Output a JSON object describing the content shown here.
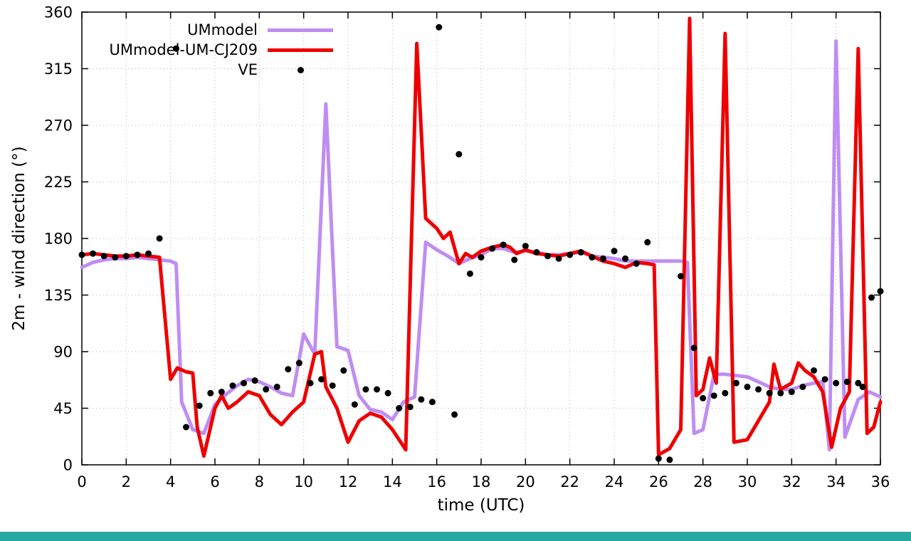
{
  "window": {
    "background": "#ffffff",
    "bottom_bar_color": "#2aa8a3"
  },
  "chart_data": {
    "type": "line",
    "title": "",
    "xlabel": "time (UTC)",
    "ylabel": "2m - wind direction (°)",
    "xlim": [
      0,
      36
    ],
    "ylim": [
      0,
      360
    ],
    "xticks": [
      0,
      2,
      4,
      6,
      8,
      10,
      12,
      14,
      16,
      18,
      20,
      22,
      24,
      26,
      28,
      30,
      32,
      34,
      36
    ],
    "yticks": [
      0,
      45,
      90,
      135,
      180,
      225,
      270,
      315,
      360
    ],
    "grid": true,
    "grid_style": "dotted",
    "legend_position": "top-left-inside",
    "series": [
      {
        "name": "UMmodel",
        "type": "line",
        "color": "#bf8df2",
        "width": 5,
        "points": [
          [
            0,
            157
          ],
          [
            0.5,
            161
          ],
          [
            1,
            163
          ],
          [
            1.5,
            164
          ],
          [
            2,
            164
          ],
          [
            2.5,
            165
          ],
          [
            3,
            164
          ],
          [
            3.5,
            163
          ],
          [
            4,
            162
          ],
          [
            4.25,
            160
          ],
          [
            4.5,
            50
          ],
          [
            5,
            28
          ],
          [
            5.5,
            25
          ],
          [
            6,
            48
          ],
          [
            6.5,
            56
          ],
          [
            7,
            63
          ],
          [
            7.5,
            68
          ],
          [
            8,
            66
          ],
          [
            8.5,
            62
          ],
          [
            9,
            57
          ],
          [
            9.5,
            55
          ],
          [
            10,
            104
          ],
          [
            10.5,
            88
          ],
          [
            11,
            287
          ],
          [
            11.5,
            94
          ],
          [
            12,
            91
          ],
          [
            12.5,
            55
          ],
          [
            13,
            44
          ],
          [
            13.5,
            42
          ],
          [
            14,
            36
          ],
          [
            14.5,
            50
          ],
          [
            15,
            54
          ],
          [
            15.5,
            177
          ],
          [
            16,
            171
          ],
          [
            16.5,
            166
          ],
          [
            17,
            160
          ],
          [
            17.5,
            164
          ],
          [
            18,
            167
          ],
          [
            18.5,
            172
          ],
          [
            19,
            172
          ],
          [
            19.5,
            169
          ],
          [
            20,
            170
          ],
          [
            20.5,
            169
          ],
          [
            21,
            167
          ],
          [
            21.5,
            167
          ],
          [
            22,
            168
          ],
          [
            22.5,
            169
          ],
          [
            23,
            166
          ],
          [
            23.5,
            165
          ],
          [
            24,
            164
          ],
          [
            24.5,
            162
          ],
          [
            25,
            162
          ],
          [
            25.5,
            162
          ],
          [
            26,
            162
          ],
          [
            26.5,
            162
          ],
          [
            27,
            162
          ],
          [
            27.3,
            161
          ],
          [
            27.6,
            25
          ],
          [
            28,
            28
          ],
          [
            28.5,
            72
          ],
          [
            29,
            72
          ],
          [
            29.5,
            71
          ],
          [
            30,
            70
          ],
          [
            30.5,
            66
          ],
          [
            31,
            62
          ],
          [
            31.5,
            60
          ],
          [
            32,
            60
          ],
          [
            32.5,
            63
          ],
          [
            33,
            65
          ],
          [
            33.4,
            66
          ],
          [
            33.7,
            12
          ],
          [
            34,
            337
          ],
          [
            34.4,
            22
          ],
          [
            35,
            52
          ],
          [
            35.5,
            58
          ],
          [
            36,
            54
          ]
        ]
      },
      {
        "name": "UMmodel-UM-CJ209",
        "type": "line",
        "color": "#ee0000",
        "width": 5,
        "points": [
          [
            0,
            167
          ],
          [
            0.5,
            168
          ],
          [
            1,
            167
          ],
          [
            1.5,
            166
          ],
          [
            2,
            166
          ],
          [
            2.5,
            167
          ],
          [
            3,
            166
          ],
          [
            3.5,
            165
          ],
          [
            4,
            68
          ],
          [
            4.3,
            77
          ],
          [
            4.7,
            74
          ],
          [
            5,
            73
          ],
          [
            5.2,
            30
          ],
          [
            5.5,
            7
          ],
          [
            6,
            45
          ],
          [
            6.3,
            55
          ],
          [
            6.6,
            45
          ],
          [
            7,
            50
          ],
          [
            7.5,
            58
          ],
          [
            8,
            55
          ],
          [
            8.5,
            40
          ],
          [
            9,
            32
          ],
          [
            9.5,
            42
          ],
          [
            10,
            50
          ],
          [
            10.5,
            88
          ],
          [
            10.8,
            90
          ],
          [
            11,
            62
          ],
          [
            11.5,
            45
          ],
          [
            12,
            18
          ],
          [
            12.5,
            35
          ],
          [
            13,
            41
          ],
          [
            13.5,
            38
          ],
          [
            14,
            28
          ],
          [
            14.6,
            12
          ],
          [
            15.1,
            335
          ],
          [
            15.5,
            196
          ],
          [
            16,
            188
          ],
          [
            16.3,
            180
          ],
          [
            16.6,
            185
          ],
          [
            17,
            160
          ],
          [
            17.3,
            168
          ],
          [
            17.6,
            165
          ],
          [
            18,
            170
          ],
          [
            18.5,
            173
          ],
          [
            19,
            175
          ],
          [
            19.3,
            173
          ],
          [
            19.6,
            168
          ],
          [
            20,
            171
          ],
          [
            20.5,
            168
          ],
          [
            21,
            167
          ],
          [
            21.5,
            166
          ],
          [
            22,
            168
          ],
          [
            22.5,
            170
          ],
          [
            23,
            166
          ],
          [
            23.5,
            162
          ],
          [
            24,
            160
          ],
          [
            24.5,
            157
          ],
          [
            25,
            161
          ],
          [
            25.5,
            160
          ],
          [
            25.8,
            159
          ],
          [
            26,
            8
          ],
          [
            26.5,
            13
          ],
          [
            27,
            28
          ],
          [
            27.4,
            355
          ],
          [
            27.7,
            55
          ],
          [
            28,
            60
          ],
          [
            28.3,
            85
          ],
          [
            28.6,
            65
          ],
          [
            29,
            343
          ],
          [
            29.4,
            18
          ],
          [
            30,
            20
          ],
          [
            30.5,
            35
          ],
          [
            31,
            50
          ],
          [
            31.2,
            80
          ],
          [
            31.5,
            60
          ],
          [
            32,
            65
          ],
          [
            32.3,
            81
          ],
          [
            32.6,
            75
          ],
          [
            33,
            70
          ],
          [
            33.4,
            58
          ],
          [
            33.8,
            14
          ],
          [
            34.2,
            45
          ],
          [
            34.6,
            58
          ],
          [
            35,
            331
          ],
          [
            35.4,
            25
          ],
          [
            35.7,
            30
          ],
          [
            36,
            50
          ]
        ]
      },
      {
        "name": "VE",
        "type": "scatter",
        "color": "#000000",
        "marker_radius": 4.5,
        "points": [
          [
            0,
            167
          ],
          [
            0.5,
            168
          ],
          [
            1,
            166
          ],
          [
            1.5,
            165
          ],
          [
            2,
            166
          ],
          [
            2.5,
            167
          ],
          [
            3,
            168
          ],
          [
            3.5,
            180
          ],
          [
            4.25,
            331
          ],
          [
            4.7,
            30
          ],
          [
            5.3,
            47
          ],
          [
            5.8,
            57
          ],
          [
            6.3,
            58
          ],
          [
            6.8,
            63
          ],
          [
            7.3,
            65
          ],
          [
            7.8,
            67
          ],
          [
            8.3,
            60
          ],
          [
            8.8,
            62
          ],
          [
            9.3,
            76
          ],
          [
            9.8,
            81
          ],
          [
            10.3,
            65
          ],
          [
            10.8,
            68
          ],
          [
            11.3,
            63
          ],
          [
            11.8,
            75
          ],
          [
            12.3,
            48
          ],
          [
            12.8,
            60
          ],
          [
            13.3,
            60
          ],
          [
            13.8,
            57
          ],
          [
            14.3,
            45
          ],
          [
            14.8,
            46
          ],
          [
            15.3,
            52
          ],
          [
            15.8,
            50
          ],
          [
            16.1,
            348
          ],
          [
            16.8,
            40
          ],
          [
            17,
            247
          ],
          [
            17.5,
            152
          ],
          [
            18,
            165
          ],
          [
            18.5,
            172
          ],
          [
            19,
            175
          ],
          [
            19.5,
            163
          ],
          [
            20,
            174
          ],
          [
            20.5,
            169
          ],
          [
            21,
            166
          ],
          [
            21.5,
            164
          ],
          [
            22,
            167
          ],
          [
            22.5,
            169
          ],
          [
            23,
            165
          ],
          [
            23.5,
            164
          ],
          [
            24,
            170
          ],
          [
            24.5,
            164
          ],
          [
            25,
            160
          ],
          [
            25.5,
            177
          ],
          [
            26,
            5
          ],
          [
            26.5,
            4
          ],
          [
            27,
            150
          ],
          [
            27.6,
            93
          ],
          [
            28,
            53
          ],
          [
            28.5,
            55
          ],
          [
            29,
            57
          ],
          [
            29.5,
            65
          ],
          [
            30,
            62
          ],
          [
            30.5,
            60
          ],
          [
            31,
            57
          ],
          [
            31.5,
            57
          ],
          [
            32,
            58
          ],
          [
            32.5,
            62
          ],
          [
            33,
            75
          ],
          [
            33.5,
            68
          ],
          [
            34,
            65
          ],
          [
            34.5,
            66
          ],
          [
            35,
            65
          ],
          [
            35.2,
            62
          ],
          [
            35.6,
            133
          ],
          [
            36,
            138
          ]
        ]
      }
    ]
  }
}
